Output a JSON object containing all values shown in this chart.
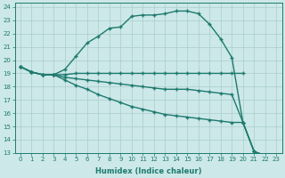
{
  "xlabel": "Humidex (Indice chaleur)",
  "xlim": [
    -0.5,
    23.5
  ],
  "ylim": [
    13,
    24.3
  ],
  "yticks": [
    13,
    14,
    15,
    16,
    17,
    18,
    19,
    20,
    21,
    22,
    23,
    24
  ],
  "xticks": [
    0,
    1,
    2,
    3,
    4,
    5,
    6,
    7,
    8,
    9,
    10,
    11,
    12,
    13,
    14,
    15,
    16,
    17,
    18,
    19,
    20,
    21,
    22,
    23
  ],
  "bg_color": "#cce8e8",
  "grid_color": "#aacccc",
  "line_color": "#1e7a6e",
  "curves": {
    "curve_upper": {
      "x": [
        0,
        1,
        2,
        3,
        4,
        5,
        6,
        7,
        8,
        9,
        10,
        11,
        12,
        13,
        14,
        15,
        16,
        17,
        18,
        19,
        20,
        21,
        22
      ],
      "y": [
        19.5,
        19.1,
        18.9,
        18.9,
        19.3,
        20.3,
        21.3,
        21.8,
        22.4,
        22.5,
        23.3,
        23.4,
        23.4,
        23.5,
        23.7,
        23.7,
        23.5,
        22.7,
        21.6,
        20.2,
        15.3,
        13.1,
        12.8
      ]
    },
    "curve_flat": {
      "x": [
        0,
        1,
        2,
        3,
        4,
        5,
        6,
        7,
        8,
        9,
        10,
        11,
        12,
        13,
        14,
        15,
        16,
        17,
        18,
        19,
        20
      ],
      "y": [
        19.5,
        19.1,
        18.9,
        18.9,
        18.9,
        19.0,
        19.0,
        19.0,
        19.0,
        19.0,
        19.0,
        19.0,
        19.0,
        19.0,
        19.0,
        19.0,
        19.0,
        19.0,
        19.0,
        19.0,
        19.0
      ]
    },
    "curve_mid": {
      "x": [
        0,
        1,
        2,
        3,
        4,
        5,
        6,
        7,
        8,
        9,
        10,
        11,
        12,
        13,
        14,
        15,
        16,
        17,
        18,
        19,
        20,
        21,
        22
      ],
      "y": [
        19.5,
        19.1,
        18.9,
        18.9,
        18.7,
        18.6,
        18.5,
        18.4,
        18.3,
        18.2,
        18.1,
        18.0,
        17.9,
        17.8,
        17.8,
        17.8,
        17.7,
        17.6,
        17.5,
        17.4,
        15.3,
        13.1,
        12.8
      ]
    },
    "curve_low": {
      "x": [
        0,
        1,
        2,
        3,
        4,
        5,
        6,
        7,
        8,
        9,
        10,
        11,
        12,
        13,
        14,
        15,
        16,
        17,
        18,
        19,
        20,
        21,
        22
      ],
      "y": [
        19.5,
        19.1,
        18.9,
        18.9,
        18.5,
        18.1,
        17.8,
        17.4,
        17.1,
        16.8,
        16.5,
        16.3,
        16.1,
        15.9,
        15.8,
        15.7,
        15.6,
        15.5,
        15.4,
        15.3,
        15.3,
        13.1,
        12.8
      ]
    }
  }
}
